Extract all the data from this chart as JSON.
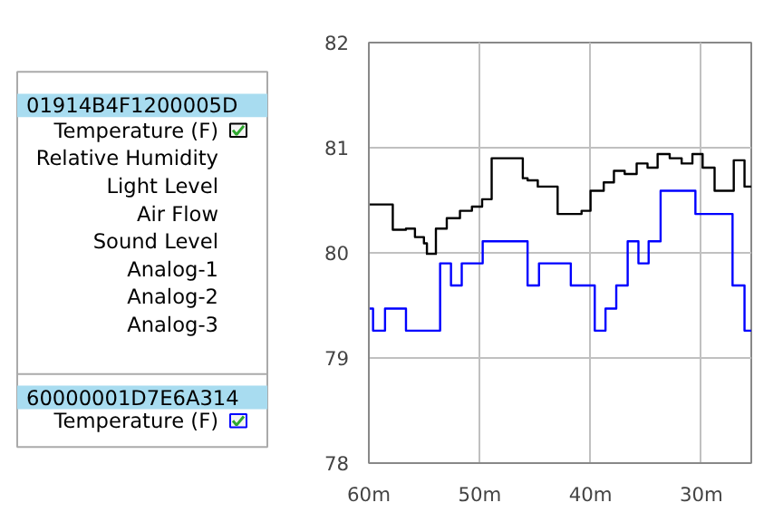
{
  "chart_data": {
    "type": "step",
    "xlim": [
      60,
      25.5
    ],
    "ylim": [
      78,
      82
    ],
    "xticks": [
      {
        "value": 60,
        "label": "60m"
      },
      {
        "value": 50,
        "label": "50m"
      },
      {
        "value": 40,
        "label": "40m"
      },
      {
        "value": 30,
        "label": "30m"
      }
    ],
    "yticks": [
      78,
      79,
      80,
      81,
      82
    ],
    "grid": true,
    "legend": "left",
    "line_style": "solid",
    "annotations": [
      "01914B4F1200005D",
      "Relative Humidity",
      "Light Level",
      "Air Flow",
      "Sound Level",
      "Analog-1",
      "Analog-2",
      "Analog-3",
      "60000001D7E6A314"
    ],
    "series": [
      {
        "name": "Temperature (F)",
        "color": "#000000",
        "x": [
          60,
          57.84,
          56.65,
          55.84,
          55.03,
          54.76,
          53.95,
          52.97,
          51.78,
          50.7,
          49.78,
          48.92,
          46.11,
          45.68,
          44.76,
          42.97,
          40.81,
          40.0,
          38.81,
          37.89,
          36.92,
          35.84,
          34.86,
          33.95,
          32.86,
          31.78,
          30.81,
          29.89,
          28.81,
          27.08,
          26.11,
          25.5
        ],
        "values": [
          80.46,
          80.22,
          80.23,
          80.15,
          80.09,
          79.99,
          80.23,
          80.33,
          80.4,
          80.44,
          80.51,
          80.9,
          80.71,
          80.69,
          80.63,
          80.37,
          80.4,
          80.59,
          80.67,
          80.78,
          80.75,
          80.85,
          80.81,
          80.94,
          80.9,
          80.85,
          80.94,
          80.81,
          80.59,
          80.88,
          80.63,
          80.63
        ]
      },
      {
        "name": "Temperature (F)",
        "color": "#0000ff",
        "x": [
          60,
          59.62,
          58.54,
          56.65,
          53.57,
          52.59,
          51.62,
          49.73,
          45.68,
          44.65,
          41.78,
          39.62,
          38.65,
          37.68,
          36.65,
          35.68,
          34.76,
          33.68,
          30.54,
          27.19,
          26.11,
          25.5
        ],
        "values": [
          79.47,
          79.26,
          79.47,
          79.26,
          79.9,
          79.69,
          79.9,
          80.11,
          79.69,
          79.9,
          79.69,
          79.26,
          79.47,
          79.69,
          80.11,
          79.9,
          80.11,
          80.59,
          80.37,
          79.69,
          79.26,
          79.26
        ]
      }
    ]
  }
}
